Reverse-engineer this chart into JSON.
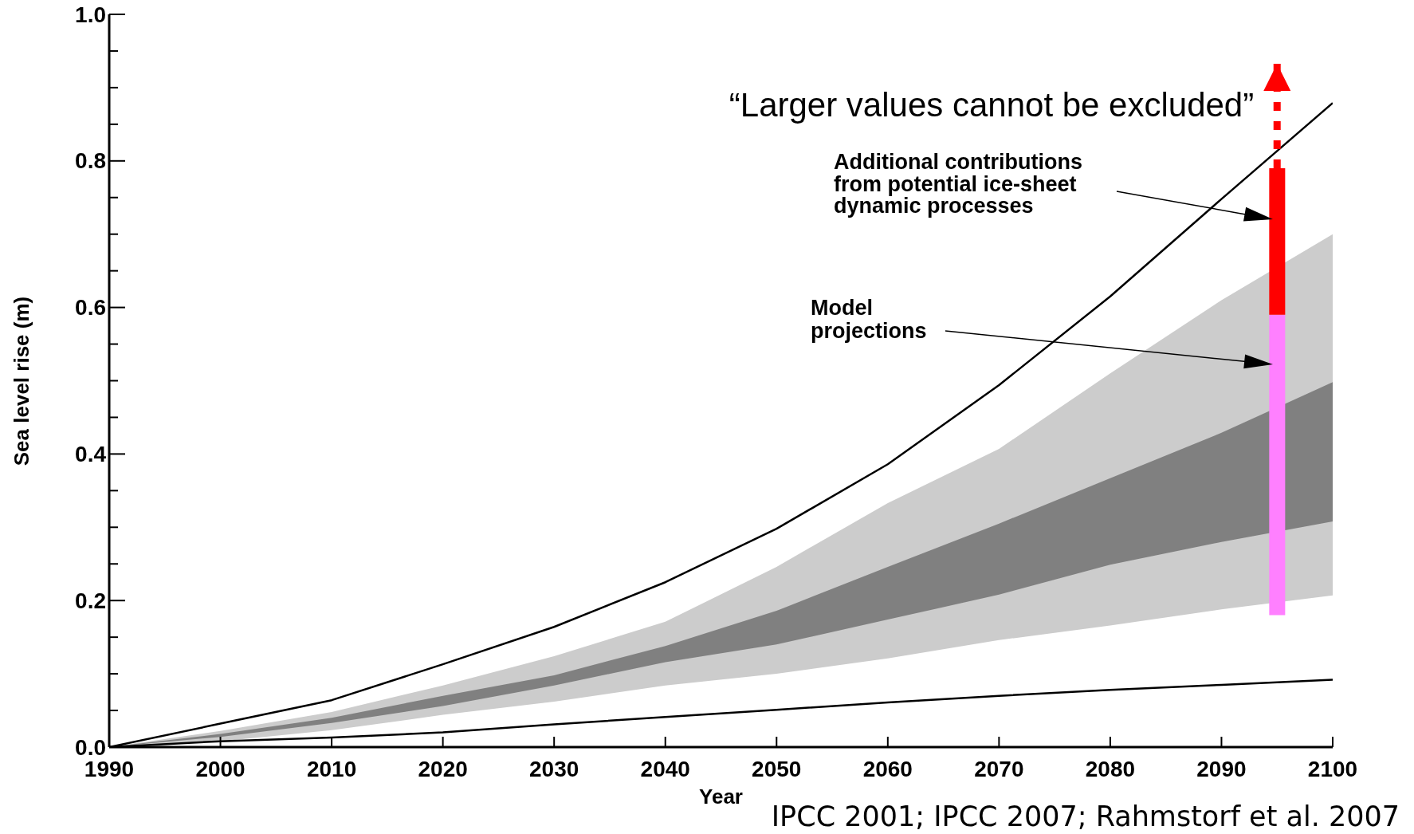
{
  "chart_data": {
    "type": "line",
    "xlabel": "Year",
    "ylabel": "Sea level rise (m)",
    "x": [
      1990,
      2000,
      2010,
      2020,
      2030,
      2040,
      2050,
      2060,
      2070,
      2080,
      2090,
      2100
    ],
    "series": [
      {
        "color": "#cccccc",
        "values": [
          null,
          null,
          null,
          null,
          null,
          null,
          null,
          null,
          null,
          null,
          null,
          null
        ],
        "lower": [
          0,
          0.008,
          0.023,
          0.044,
          0.062,
          0.084,
          0.1,
          0.121,
          0.146,
          0.166,
          0.188,
          0.207
        ],
        "upper": [
          0,
          0.022,
          0.048,
          0.084,
          0.124,
          0.171,
          0.246,
          0.333,
          0.407,
          0.51,
          0.61,
          0.7
        ]
      },
      {
        "color": "#808080",
        "values": [
          null,
          null,
          null,
          null,
          null,
          null,
          null,
          null,
          null,
          null,
          null,
          null
        ],
        "lower": [
          0,
          0.014,
          0.033,
          0.056,
          0.084,
          0.116,
          0.14,
          0.174,
          0.208,
          0.249,
          0.28,
          0.308
        ],
        "upper": [
          0,
          0.018,
          0.04,
          0.07,
          0.098,
          0.138,
          0.186,
          0.246,
          0.305,
          0.367,
          0.429,
          0.498
        ]
      },
      {
        "color": "#000000",
        "values": [
          0,
          0.032,
          0.064,
          0.113,
          0.164,
          0.225,
          0.298,
          0.386,
          0.494,
          0.615,
          0.748,
          0.879
        ]
      },
      {
        "color": "#000000",
        "values": [
          0,
          0.008,
          0.013,
          0.02,
          0.031,
          0.041,
          0.051,
          0.061,
          0.07,
          0.078,
          0.085,
          0.092
        ]
      },
      {
        "type": "bar",
        "x": [
          2095
        ],
        "base": [
          0.18
        ],
        "values": [
          0.41
        ],
        "color": "#ff80ff"
      },
      {
        "type": "bar",
        "x": [
          2095
        ],
        "base": [
          0.59
        ],
        "values": [
          0.2
        ],
        "color": "#ff0000"
      }
    ],
    "xlim": [
      1990,
      2100
    ],
    "xticks": [
      1990,
      2000,
      2010,
      2020,
      2030,
      2040,
      2050,
      2060,
      2070,
      2080,
      2090,
      2100
    ],
    "ylim": [
      0,
      1
    ],
    "yticks": [
      {
        "value": 0,
        "label": "0.0"
      },
      {
        "value": 0.05,
        "label": null
      },
      {
        "value": 0.1,
        "label": null
      },
      {
        "value": 0.15,
        "label": null
      },
      0.2,
      {
        "value": 0.25,
        "label": null
      },
      {
        "value": 0.3,
        "label": null
      },
      {
        "value": 0.35,
        "label": null
      },
      0.4,
      {
        "value": 0.45,
        "label": null
      },
      {
        "value": 0.5,
        "label": null
      },
      {
        "value": 0.55,
        "label": null
      },
      0.6,
      {
        "value": 0.65,
        "label": null
      },
      {
        "value": 0.7,
        "label": null
      },
      {
        "value": 0.75,
        "label": null
      },
      0.8,
      {
        "value": 0.85,
        "label": null
      },
      {
        "value": 0.9,
        "label": null
      },
      {
        "value": 0.95,
        "label": null
      },
      {
        "value": 1,
        "label": "1.0"
      }
    ],
    "marker": "none",
    "annotations": [
      {
        "text": "“Larger values cannot be excluded”",
        "x": 2095,
        "y": 0.79
      },
      "Additional contributions\nfrom potential ice-sheet\ndynamic processes",
      "Model\nprojections",
      "IPCC 2001; IPCC 2007; Rahmstorf et al. 2007"
    ]
  }
}
